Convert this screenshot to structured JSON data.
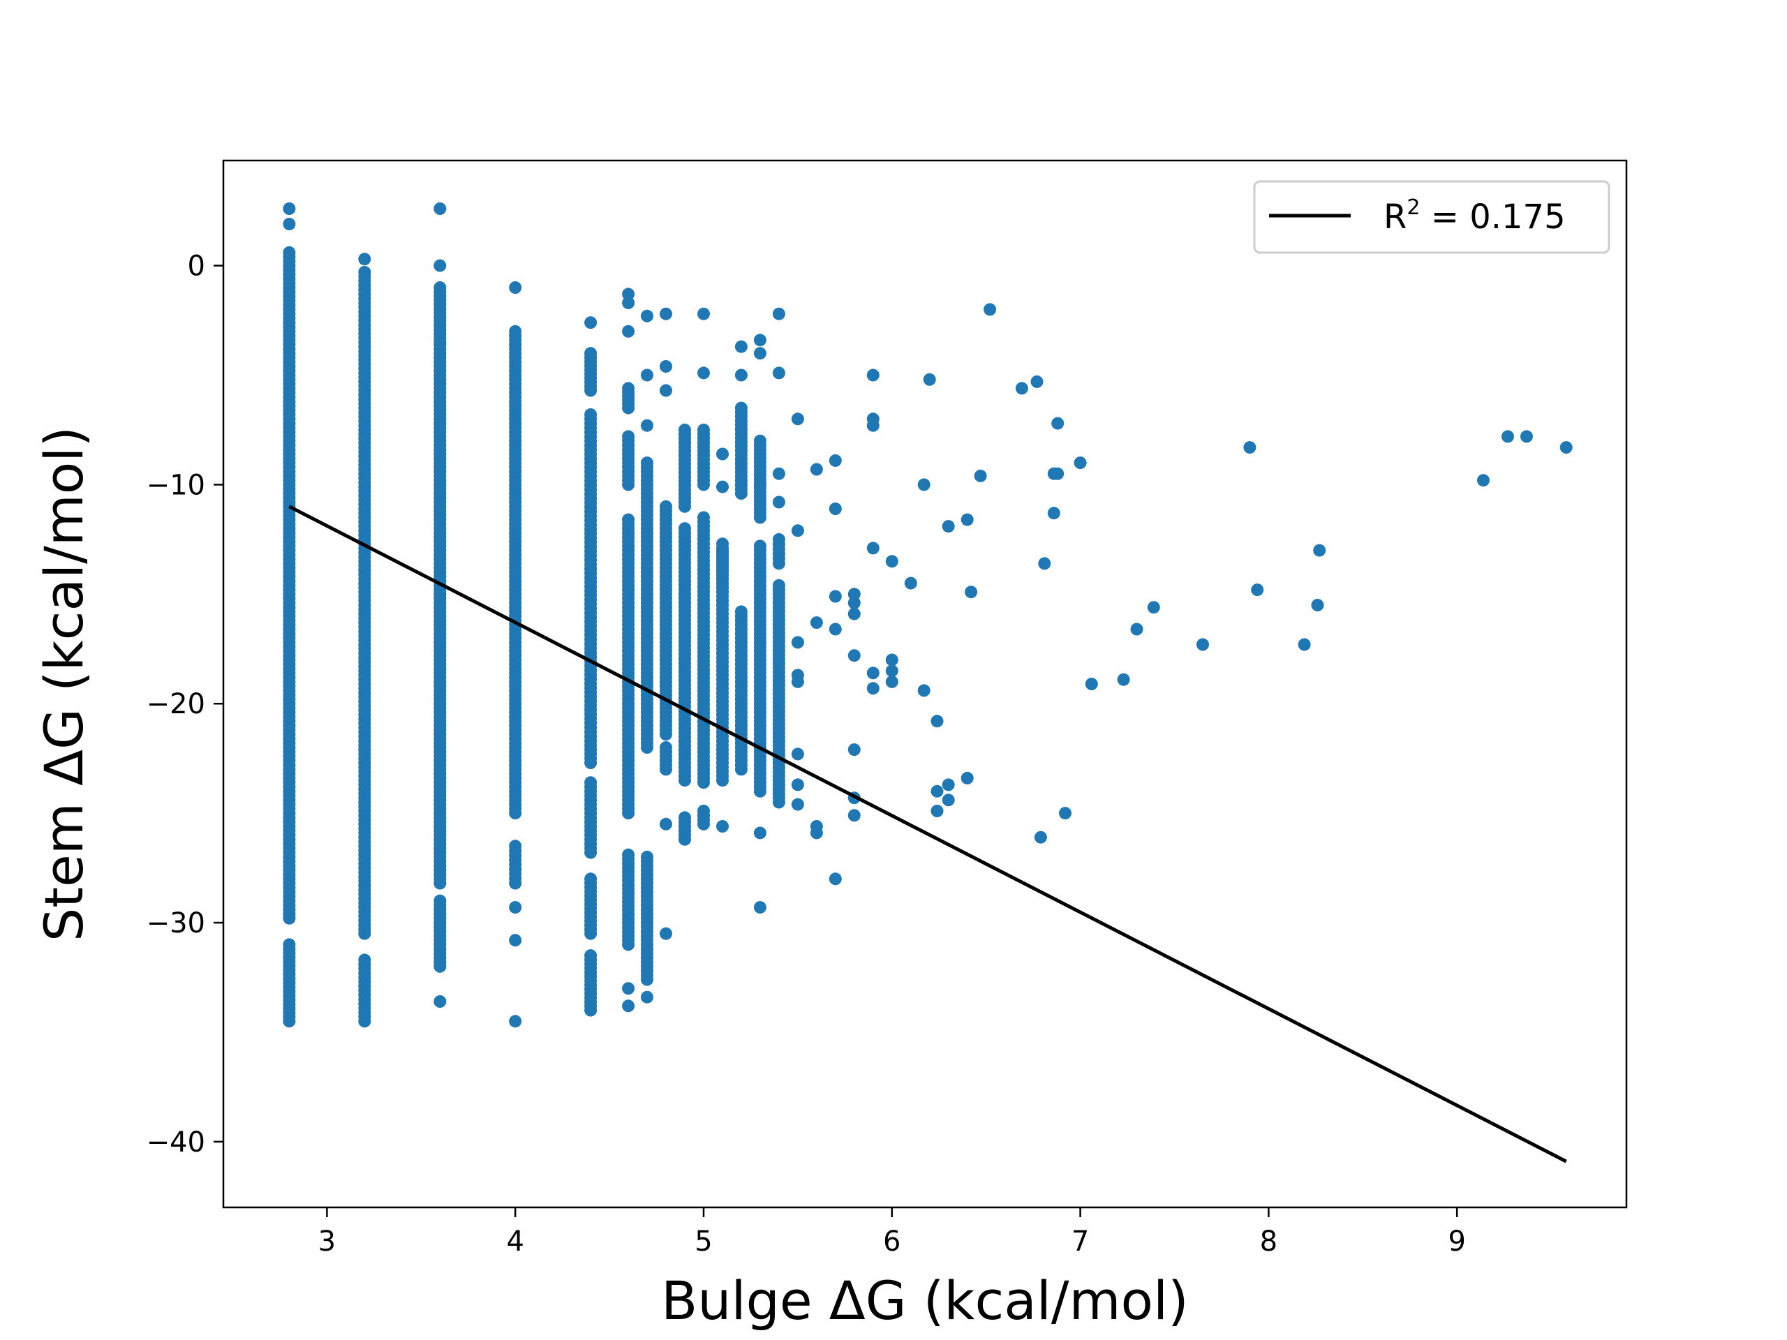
{
  "chart_data": {
    "type": "scatter",
    "xlabel": "Bulge ΔG (kcal/mol)",
    "ylabel": "Stem  ΔG (kcal/mol)",
    "xlim": [
      2.45,
      9.9
    ],
    "ylim": [
      -43,
      4.8
    ],
    "xticks": [
      3,
      4,
      5,
      6,
      7,
      8,
      9
    ],
    "yticks": [
      0,
      -10,
      -20,
      -30,
      -40
    ],
    "xtick_labels": [
      "3",
      "4",
      "5",
      "6",
      "7",
      "8",
      "9"
    ],
    "ytick_labels": [
      "0",
      "−10",
      "−20",
      "−30",
      "−40"
    ],
    "grid": false,
    "legend": {
      "placement": "upper right",
      "label_prefix": "R",
      "label_sup": "2",
      "label_suffix": " = 0.175"
    },
    "colors": {
      "points": "#1f77b4",
      "fit_line": "#000000",
      "legend_border": "#cccccc"
    },
    "fit_line": {
      "x": [
        2.8,
        9.58
      ],
      "y": [
        -11.0,
        -40.9
      ],
      "r_squared": 0.175
    },
    "series": [
      {
        "type": "column_ranges",
        "columns": [
          {
            "x": 2.8,
            "ranges": [
              [
                -29.8,
                0.6
              ],
              [
                -34.5,
                -31.0
              ]
            ],
            "extra": [
              1.9,
              2.6
            ]
          },
          {
            "x": 3.2,
            "ranges": [
              [
                -30.5,
                -0.3
              ],
              [
                -34.5,
                -31.7
              ]
            ],
            "extra": [
              0.3
            ]
          },
          {
            "x": 3.6,
            "ranges": [
              [
                -28.2,
                -3.6
              ],
              [
                -32.0,
                -29.0
              ],
              [
                -3.5,
                -1.0
              ]
            ],
            "extra": [
              0.0,
              2.6,
              -33.6
            ]
          },
          {
            "x": 4.0,
            "ranges": [
              [
                -25.0,
                -3.0
              ],
              [
                -28.2,
                -26.5
              ]
            ],
            "extra": [
              -1.0,
              -29.3,
              -30.8,
              -34.5
            ]
          },
          {
            "x": 4.4,
            "ranges": [
              [
                -22.7,
                -6.8
              ],
              [
                -26.8,
                -23.6
              ],
              [
                -30.5,
                -28.0
              ],
              [
                -34.0,
                -31.5
              ],
              [
                -5.7,
                -4.0
              ]
            ],
            "extra": [
              -2.6
            ]
          },
          {
            "x": 4.6,
            "ranges": [
              [
                -25.0,
                -11.6
              ],
              [
                -31.0,
                -26.9
              ],
              [
                -10.0,
                -7.8
              ],
              [
                -6.3,
                -5.6
              ]
            ],
            "extra": [
              -1.3,
              -1.7,
              -3.0,
              -6.5,
              -33.8,
              -33.0
            ]
          },
          {
            "x": 4.7,
            "ranges": [
              [
                -22.0,
                -9.0
              ],
              [
                -32.6,
                -27.0
              ]
            ],
            "extra": [
              -2.3,
              -5.0,
              -7.3,
              -33.4
            ]
          },
          {
            "x": 4.8,
            "ranges": [
              [
                -21.4,
                -11.0
              ],
              [
                -23.0,
                -22.0
              ]
            ],
            "extra": [
              -2.2,
              -4.6,
              -5.7,
              -25.5,
              -30.5
            ]
          },
          {
            "x": 4.9,
            "ranges": [
              [
                -23.5,
                -12.0
              ],
              [
                -26.2,
                -25.2
              ],
              [
                -11.0,
                -7.5
              ]
            ],
            "extra": []
          },
          {
            "x": 5.0,
            "ranges": [
              [
                -23.6,
                -11.5
              ],
              [
                -25.5,
                -24.9
              ],
              [
                -10.0,
                -7.5
              ]
            ],
            "extra": [
              -2.2,
              -4.9
            ]
          },
          {
            "x": 5.1,
            "ranges": [
              [
                -23.5,
                -12.7
              ],
              [
                -14.9,
                -13.0
              ]
            ],
            "extra": [
              -25.6,
              -8.6,
              -10.1,
              -15.3
            ]
          },
          {
            "x": 5.2,
            "ranges": [
              [
                -23.0,
                -15.8
              ],
              [
                -10.4,
                -6.5
              ]
            ],
            "extra": [
              -3.7,
              -5.0
            ]
          },
          {
            "x": 5.3,
            "ranges": [
              [
                -24.0,
                -12.8
              ],
              [
                -11.5,
                -8.0
              ]
            ],
            "extra": [
              -3.4,
              -4.0,
              -10.0,
              -25.9,
              -29.3
            ]
          },
          {
            "x": 5.4,
            "ranges": [
              [
                -24.5,
                -14.6
              ],
              [
                -13.6,
                -12.5
              ]
            ],
            "extra": [
              -2.2,
              -4.9,
              -9.5,
              -10.8
            ]
          },
          {
            "x": 5.5,
            "ranges": [],
            "extra": [
              -7.0,
              -12.1,
              -17.2,
              -18.7,
              -19.0,
              -22.3,
              -23.7,
              -24.6
            ]
          },
          {
            "x": 5.6,
            "ranges": [],
            "extra": [
              -9.3,
              -16.3,
              -25.6,
              -25.9
            ]
          },
          {
            "x": 5.7,
            "ranges": [],
            "extra": [
              -8.9,
              -11.1,
              -15.1,
              -16.6,
              -28.0
            ]
          },
          {
            "x": 5.8,
            "ranges": [],
            "extra": [
              -15.0,
              -15.4,
              -15.9,
              -17.8,
              -22.1,
              -24.3,
              -25.1
            ]
          },
          {
            "x": 5.9,
            "ranges": [],
            "extra": [
              -5.0,
              -7.0,
              -7.3,
              -12.9,
              -18.6,
              -19.3
            ]
          },
          {
            "x": 6.0,
            "ranges": [],
            "extra": [
              -13.5,
              -18.0,
              -18.5,
              -19.0
            ]
          }
        ]
      },
      {
        "type": "points",
        "points": [
          [
            6.1,
            -14.5
          ],
          [
            6.17,
            -10.0
          ],
          [
            6.17,
            -19.4
          ],
          [
            6.2,
            -5.2
          ],
          [
            6.24,
            -20.8
          ],
          [
            6.24,
            -24.0
          ],
          [
            6.24,
            -24.9
          ],
          [
            6.3,
            -11.9
          ],
          [
            6.3,
            -23.7
          ],
          [
            6.3,
            -24.4
          ],
          [
            6.4,
            -11.6
          ],
          [
            6.4,
            -23.4
          ],
          [
            6.42,
            -14.9
          ],
          [
            6.47,
            -9.6
          ],
          [
            6.52,
            -2.0
          ],
          [
            6.69,
            -5.6
          ],
          [
            6.77,
            -5.3
          ],
          [
            6.79,
            -26.1
          ],
          [
            6.81,
            -13.6
          ],
          [
            6.86,
            -9.5
          ],
          [
            6.86,
            -11.3
          ],
          [
            6.88,
            -7.2
          ],
          [
            6.88,
            -9.5
          ],
          [
            6.92,
            -25.0
          ],
          [
            7.0,
            -9.0
          ],
          [
            7.06,
            -19.1
          ],
          [
            7.23,
            -18.9
          ],
          [
            7.3,
            -16.6
          ],
          [
            7.39,
            -15.6
          ],
          [
            7.65,
            -17.3
          ],
          [
            7.9,
            -8.3
          ],
          [
            7.94,
            -14.8
          ],
          [
            8.19,
            -17.3
          ],
          [
            8.26,
            -15.5
          ],
          [
            8.27,
            -13.0
          ],
          [
            9.14,
            -9.8
          ],
          [
            9.27,
            -7.8
          ],
          [
            9.37,
            -7.8
          ],
          [
            9.58,
            -8.3
          ]
        ]
      }
    ]
  }
}
